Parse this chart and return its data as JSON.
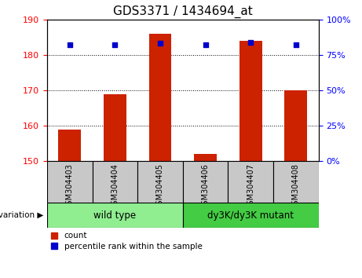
{
  "title": "GDS3371 / 1434694_at",
  "samples": [
    "GSM304403",
    "GSM304404",
    "GSM304405",
    "GSM304406",
    "GSM304407",
    "GSM304408"
  ],
  "counts": [
    159,
    169,
    186,
    152,
    184,
    170
  ],
  "percentiles": [
    82,
    82,
    83,
    82,
    84,
    82
  ],
  "ylim_left": [
    150,
    190
  ],
  "ylim_right": [
    0,
    100
  ],
  "yticks_left": [
    150,
    160,
    170,
    180,
    190
  ],
  "yticks_right": [
    0,
    25,
    50,
    75,
    100
  ],
  "groups": [
    {
      "label": "wild type",
      "indices": [
        0,
        1,
        2
      ],
      "color": "#90EE90"
    },
    {
      "label": "dy3K/dy3K mutant",
      "indices": [
        3,
        4,
        5
      ],
      "color": "#44CC44"
    }
  ],
  "bar_color": "#CC2200",
  "marker_color": "#0000CC",
  "bar_width": 0.5,
  "background_color": "#ffffff",
  "tick_bg_color": "#C8C8C8",
  "legend_count_label": "count",
  "legend_percentile_label": "percentile rank within the sample",
  "title_fontsize": 11,
  "tick_fontsize": 8,
  "marker_size": 18
}
